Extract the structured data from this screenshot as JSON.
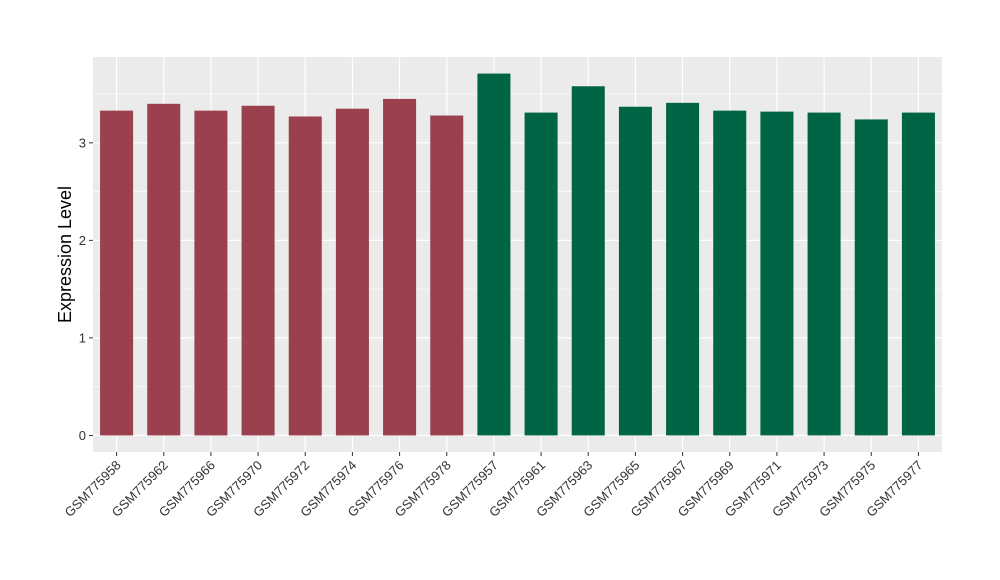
{
  "chart_data": {
    "type": "bar",
    "title": "",
    "xlabel": "",
    "ylabel": "Expression Level",
    "ylim": [
      -0.17,
      3.88
    ],
    "yticks": [
      0,
      1,
      2,
      3
    ],
    "grid": true,
    "legend": "none",
    "background": "#EBEBEB",
    "gridline_color": "#FFFFFF",
    "categories": [
      "GSM775958",
      "GSM775962",
      "GSM775966",
      "GSM775970",
      "GSM775972",
      "GSM775974",
      "GSM775976",
      "GSM775978",
      "GSM775957",
      "GSM775961",
      "GSM775963",
      "GSM775965",
      "GSM775967",
      "GSM775969",
      "GSM775971",
      "GSM775973",
      "GSM775975",
      "GSM775977"
    ],
    "values": [
      3.33,
      3.4,
      3.33,
      3.38,
      3.27,
      3.35,
      3.45,
      3.28,
      3.71,
      3.31,
      3.58,
      3.37,
      3.41,
      3.33,
      3.32,
      3.31,
      3.24,
      3.31
    ],
    "colors": [
      "#9A404E",
      "#9A404E",
      "#9A404E",
      "#9A404E",
      "#9A404E",
      "#9A404E",
      "#9A404E",
      "#9A404E",
      "#006544",
      "#006544",
      "#006544",
      "#006544",
      "#006544",
      "#006544",
      "#006544",
      "#006544",
      "#006544",
      "#006544"
    ]
  }
}
